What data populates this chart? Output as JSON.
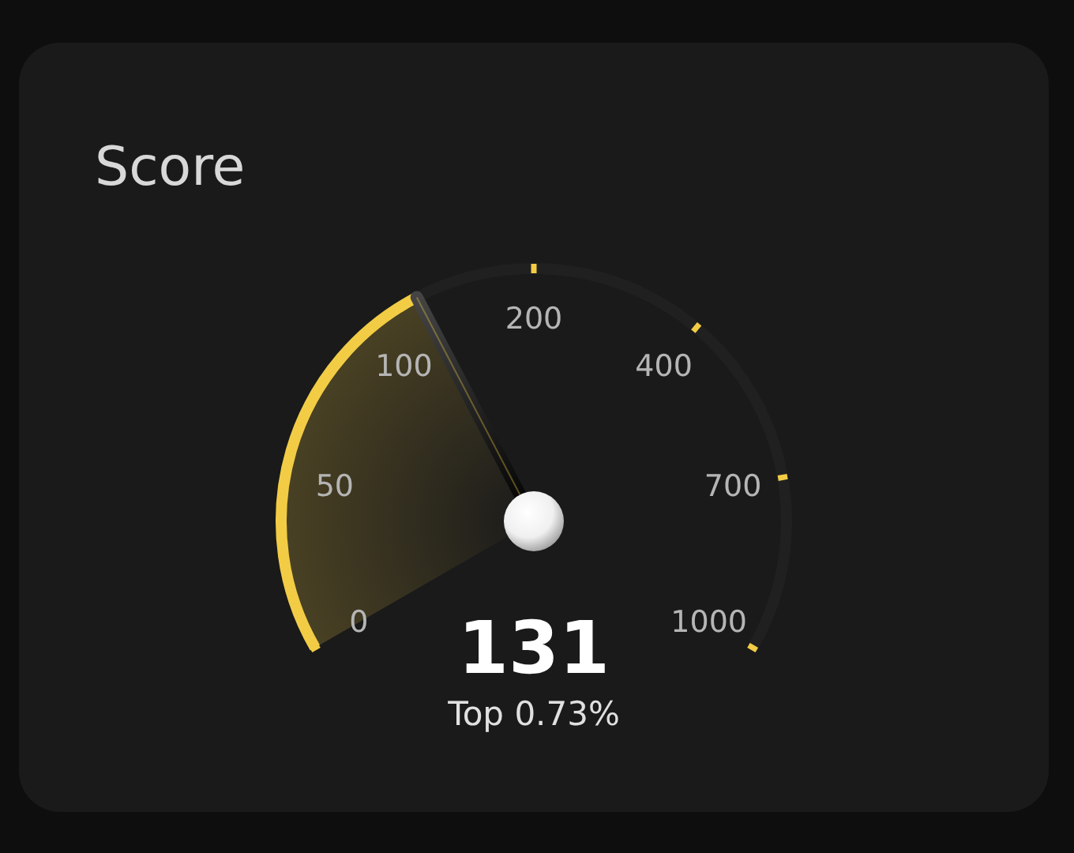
{
  "chart_data": {
    "type": "other",
    "title": "Score",
    "values": [
      131
    ],
    "data_labels": true,
    "color": "#f2cc45",
    "annotations": [
      "0",
      "50",
      "100",
      "200",
      "400",
      "700",
      "1000",
      "Top 0.73%"
    ]
  }
}
